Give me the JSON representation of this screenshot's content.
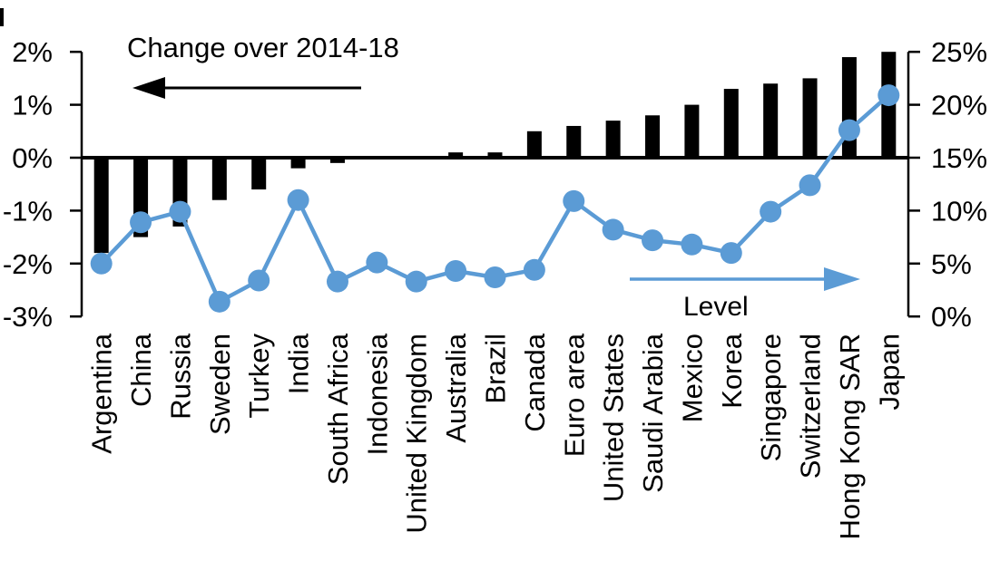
{
  "chart_data": {
    "type": "combo-bar-line",
    "title": "",
    "categories": [
      "Argentina",
      "China",
      "Russia",
      "Sweden",
      "Turkey",
      "India",
      "South Africa",
      "Indonesia",
      "United Kingdom",
      "Australia",
      "Brazil",
      "Canada",
      "Euro area",
      "United States",
      "Saudi Arabia",
      "Mexico",
      "Korea",
      "Singapore",
      "Switzerland",
      "Hong Kong SAR",
      "Japan"
    ],
    "series": [
      {
        "name": "Change over 2014-18",
        "type": "bar",
        "axis": "left",
        "color": "#000000",
        "unit": "%",
        "values": [
          -1.8,
          -1.5,
          -1.3,
          -0.8,
          -0.6,
          -0.2,
          -0.1,
          0,
          0,
          0.1,
          0.1,
          0.5,
          0.6,
          0.7,
          0.8,
          1.0,
          1.3,
          1.4,
          1.5,
          1.9,
          2.0
        ]
      },
      {
        "name": "Level",
        "type": "line",
        "axis": "right",
        "color": "#5B9BD5",
        "unit": "%",
        "values": [
          5.0,
          8.9,
          9.9,
          1.4,
          3.4,
          11.0,
          3.3,
          5.1,
          3.3,
          4.3,
          3.7,
          4.4,
          10.9,
          8.2,
          7.2,
          6.8,
          6.0,
          9.9,
          12.4,
          17.6,
          20.9
        ]
      }
    ],
    "left_axis": {
      "ticks": [
        "2%",
        "1%",
        "0%",
        "-1%",
        "-2%",
        "-3%"
      ],
      "tick_values": [
        2,
        1,
        0,
        -1,
        -2,
        -3
      ],
      "min": -3,
      "max": 2
    },
    "right_axis": {
      "ticks": [
        "25%",
        "20%",
        "15%",
        "10%",
        "5%",
        "0%"
      ],
      "tick_values": [
        25,
        20,
        15,
        10,
        5,
        0
      ],
      "min": 0,
      "max": 25
    },
    "annotations": {
      "left_series_label": "Change over 2014-18",
      "left_arrow_direction": "left",
      "right_series_label": "Level",
      "right_arrow_direction": "right"
    },
    "grid": false,
    "legend_position": "in-plot text annotations with directional arrows"
  }
}
